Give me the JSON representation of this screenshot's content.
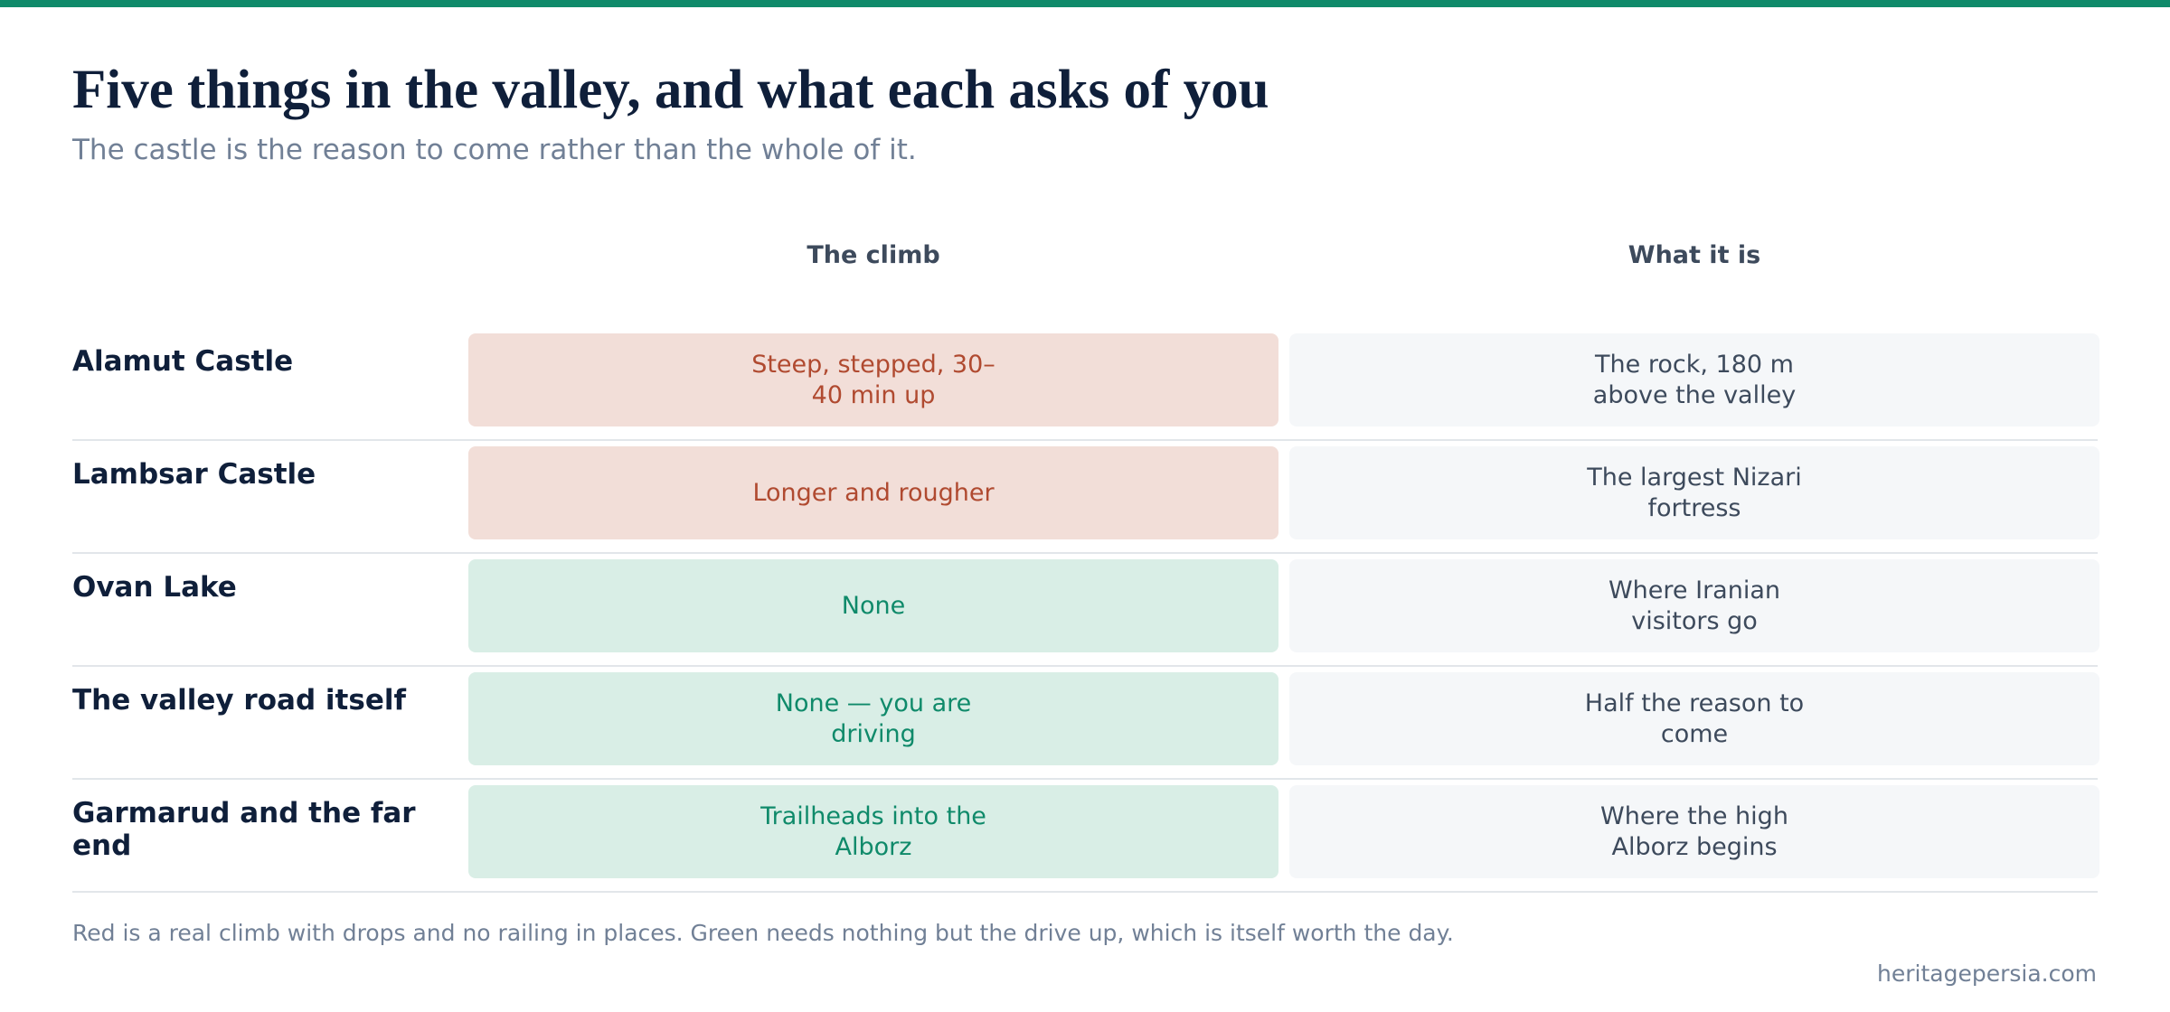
{
  "header": {
    "title": "Five things in the valley, and what each asks of you",
    "subtitle": "The castle is the reason to come rather than the whole of it."
  },
  "table": {
    "columns": [
      "The climb",
      "What it is"
    ],
    "rows": [
      [
        "Alamut Castle",
        "Steep, stepped, 30–40 min up",
        "The rock, 180 m above the valley"
      ],
      [
        "Lambsar Castle",
        "Longer and rougher",
        "The largest Nizari fortress"
      ],
      [
        "Ovan Lake",
        "None",
        "Where Iranian visitors go"
      ],
      [
        "The valley road itself",
        "None — you are driving",
        "Half the reason to come"
      ],
      [
        "Garmarud and the far end",
        "Trailheads into the Alborz",
        "Where the high Alborz begins"
      ]
    ]
  },
  "footer": {
    "note": "Red is a real climb with drops and no railing in places. Green needs nothing but the drive up, which is itself worth the day.",
    "source": "heritagepersia.com"
  }
}
